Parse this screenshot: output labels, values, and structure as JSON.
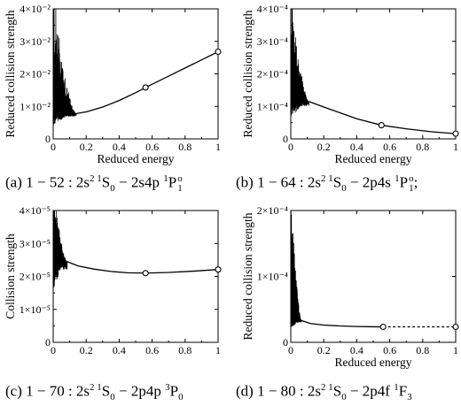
{
  "chart_data": [
    {
      "type": "line",
      "panel": "a",
      "caption": {
        "prefix": "(a)  1 − 52 : 2s",
        "sup1": "2 1",
        "mid1": "S",
        "sub1": "0",
        "mid2": " − 2s4p ",
        "sup2": "1",
        "mid3": "P",
        "sup3": "o",
        "sub3": "1",
        "suffix": ""
      },
      "xlabel": "Reduced energy",
      "ylabel": "Reduced collision strength",
      "xlim": [
        0,
        1
      ],
      "ylim": [
        0,
        0.04
      ],
      "xticks": [
        0,
        0.2,
        0.4,
        0.6,
        0.8,
        1
      ],
      "xtick_labels": [
        "0",
        "0.2",
        "0.4",
        "0.6",
        "0.8",
        "1"
      ],
      "yticks": [
        0,
        0.01,
        0.02,
        0.03,
        0.04
      ],
      "ytick_labels": [
        "0",
        "1×10⁻²",
        "2×10⁻²",
        "3×10⁻²",
        "4×10⁻²"
      ],
      "resonance": {
        "x_start": 0.0,
        "x_end": 0.14,
        "y_min": 0.004,
        "y_max": 0.04,
        "y_end": 0.0078
      },
      "series": [
        {
          "x": [
            0.14,
            0.2,
            0.3,
            0.4,
            0.5,
            0.56,
            0.7,
            0.8,
            0.9,
            1.0
          ],
          "y": [
            0.0078,
            0.0083,
            0.0098,
            0.0118,
            0.0142,
            0.0158,
            0.0193,
            0.0218,
            0.0243,
            0.0268
          ],
          "style": "solid"
        }
      ],
      "markers": [
        {
          "x": 0.56,
          "y": 0.0158
        },
        {
          "x": 1.0,
          "y": 0.0268
        }
      ]
    },
    {
      "type": "line",
      "panel": "b",
      "caption": {
        "prefix": "(b)  1 − 64 : 2s",
        "sup1": "2 1",
        "mid1": "S",
        "sub1": "0",
        "mid2": " − 2p4s ",
        "sup2": "1",
        "mid3": "P",
        "sup3": "o",
        "sub3": "1",
        "suffix": ";"
      },
      "xlabel": "Reduced energy",
      "ylabel": "Reduced collision strength",
      "xlim": [
        0,
        1
      ],
      "ylim": [
        0,
        0.0004
      ],
      "xticks": [
        0,
        0.2,
        0.4,
        0.6,
        0.8,
        1
      ],
      "xtick_labels": [
        "0",
        "0.2",
        "0.4",
        "0.6",
        "0.8",
        "1"
      ],
      "yticks": [
        0,
        0.0001,
        0.0002,
        0.0003,
        0.0004
      ],
      "ytick_labels": [
        "0",
        "1×10⁻⁴",
        "2×10⁻⁴",
        "3×10⁻⁴",
        "4×10⁻⁴"
      ],
      "resonance": {
        "x_start": 0.0,
        "x_end": 0.11,
        "y_min": 6e-05,
        "y_max": 0.0004,
        "y_end": 0.000115
      },
      "series": [
        {
          "x": [
            0.11,
            0.2,
            0.3,
            0.4,
            0.55,
            0.7,
            0.85,
            1.0
          ],
          "y": [
            0.000115,
            9.8e-05,
            8e-05,
            6.2e-05,
            4.2e-05,
            3.1e-05,
            2.2e-05,
            1.6e-05
          ],
          "style": "solid"
        }
      ],
      "markers": [
        {
          "x": 0.55,
          "y": 4.2e-05
        },
        {
          "x": 1.0,
          "y": 1.6e-05
        }
      ]
    },
    {
      "type": "line",
      "panel": "c",
      "caption": {
        "prefix": "(c)  1 − 70 : 2s",
        "sup1": "2 1",
        "mid1": "S",
        "sub1": "0",
        "mid2": " − 2p4p ",
        "sup2": "3",
        "mid3": "P",
        "sup3": "",
        "sub3": "0",
        "suffix": ""
      },
      "xlabel": "",
      "ylabel": "Collision strength",
      "xlim": [
        0,
        1
      ],
      "ylim": [
        0,
        4e-05
      ],
      "xticks": [
        0,
        0.2,
        0.4,
        0.6,
        0.8,
        1
      ],
      "xtick_labels": [
        "0",
        "0.2",
        "0.4",
        "0.6",
        "0.8",
        "1"
      ],
      "yticks": [
        0,
        1e-05,
        2e-05,
        3e-05,
        4e-05
      ],
      "ytick_labels": [
        "0",
        "1×10⁻⁵",
        "2×10⁻⁵",
        "3×10⁻⁵",
        "4×10⁻⁵"
      ],
      "resonance": {
        "x_start": 0.0,
        "x_end": 0.085,
        "y_min": 1.5e-05,
        "y_max": 4e-05,
        "y_end": 2.45e-05
      },
      "series": [
        {
          "x": [
            0.085,
            0.15,
            0.25,
            0.35,
            0.45,
            0.56,
            0.7,
            0.85,
            1.0
          ],
          "y": [
            2.45e-05,
            2.32e-05,
            2.22e-05,
            2.15e-05,
            2.11e-05,
            2.1e-05,
            2.12e-05,
            2.16e-05,
            2.21e-05
          ],
          "style": "solid"
        }
      ],
      "markers": [
        {
          "x": 0.56,
          "y": 2.1e-05
        },
        {
          "x": 1.0,
          "y": 2.21e-05
        }
      ]
    },
    {
      "type": "line",
      "panel": "d",
      "caption": {
        "prefix": "(d)  1 − 80 : 2s",
        "sup1": "2 1",
        "mid1": "S",
        "sub1": "0",
        "mid2": " − 2p4f ",
        "sup2": "1",
        "mid3": "F",
        "sup3": "",
        "sub3": "3",
        "suffix": ""
      },
      "xlabel": "Reduced energy",
      "ylabel": "Reduced collision strength",
      "xlim": [
        0,
        1
      ],
      "ylim": [
        0,
        0.0002
      ],
      "xticks": [
        0,
        0.2,
        0.4,
        0.6,
        0.8,
        1
      ],
      "xtick_labels": [
        "0",
        "0.2",
        "0.4",
        "0.6",
        "0.8",
        "1"
      ],
      "yticks": [
        0,
        0.0001,
        0.0002
      ],
      "ytick_labels": [
        "0",
        "1×10⁻⁴",
        "2×10⁻⁴"
      ],
      "resonance": {
        "x_start": 0.0,
        "x_end": 0.065,
        "y_min": 2e-05,
        "y_max": 0.0002,
        "y_end": 3.3e-05
      },
      "series": [
        {
          "x": [
            0.065,
            0.12,
            0.2,
            0.3,
            0.4,
            0.5,
            0.56
          ],
          "y": [
            3.3e-05,
            2.85e-05,
            2.62e-05,
            2.48e-05,
            2.4e-05,
            2.36e-05,
            2.35e-05
          ],
          "style": "solid"
        },
        {
          "x": [
            0.56,
            1.0
          ],
          "y": [
            2.35e-05,
            2.35e-05
          ],
          "style": "dashed"
        }
      ],
      "markers": [
        {
          "x": 0.56,
          "y": 2.35e-05
        },
        {
          "x": 1.0,
          "y": 2.35e-05
        }
      ]
    }
  ]
}
